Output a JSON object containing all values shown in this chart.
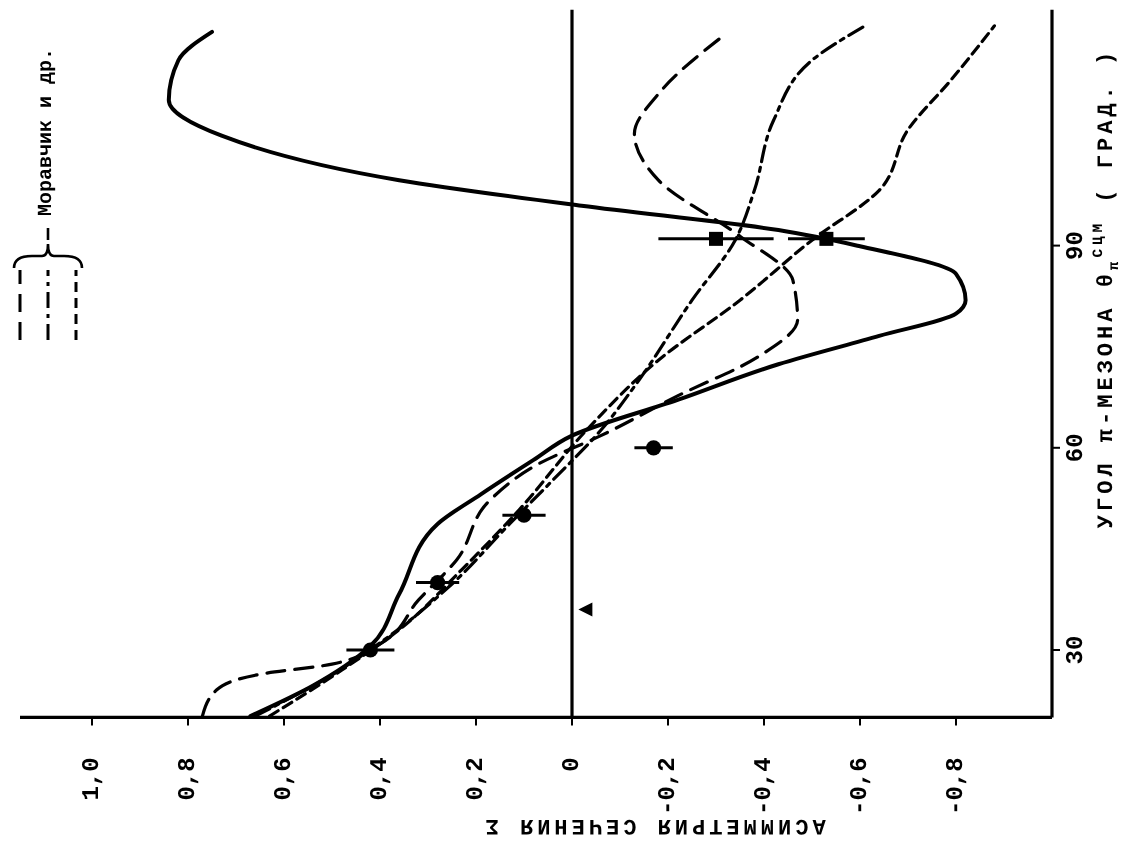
{
  "chart_data": {
    "type": "line",
    "ylabel": "УГОЛ π-МЕЗОНА θ$_{π}$$^{СЦМ}$ ( ГРАД. )",
    "xlabel": "АСИММЕТРИЯ СЕЧЕНИЯ Σ",
    "annotations": [
      "Моравчик и др."
    ],
    "ylim": [
      20,
      125
    ],
    "yticks": [
      30,
      60,
      90
    ],
    "xlim": [
      1.15,
      -1.0
    ],
    "xticks": [
      {
        "value": 1.0,
        "label": "1,0"
      },
      {
        "value": 0.8,
        "label": "0,8"
      },
      {
        "value": 0.6,
        "label": "0,6"
      },
      {
        "value": 0.4,
        "label": "0,4"
      },
      {
        "value": 0.2,
        "label": "0,2"
      },
      0,
      {
        "value": -0.2,
        "label": "-0,2"
      },
      {
        "value": -0.4,
        "label": "-0,4"
      },
      {
        "value": -0.6,
        "label": "-0,6"
      },
      {
        "value": -0.8,
        "label": "-0,8"
      }
    ],
    "ref_lines": [
      {
        "axis": "x",
        "value": 0,
        "color": "#000000"
      }
    ],
    "series": [
      {
        "color": "#000000",
        "line_style": "solid",
        "values": [
          20.2,
          24.7,
          30.6,
          38.3,
          48.7,
          53.1,
          58.2,
          61.8,
          67.1,
          72.4,
          76.6,
          79.9,
          81.9,
          85.8,
          89.9,
          92.3,
          95.9,
          99.7,
          106.3,
          111.6,
          117.5,
          121.7
        ],
        "x": [
          0.67,
          0.54,
          0.42,
          0.36,
          0.28,
          0.19,
          0.08,
          0.0,
          -0.22,
          -0.43,
          -0.64,
          -0.8,
          -0.82,
          -0.8,
          -0.6,
          -0.43,
          -0.02,
          0.36,
          0.73,
          0.84,
          0.82,
          0.75
        ]
      },
      {
        "color": "#000000",
        "line_style": "dashed",
        "values": [
          20.2,
          24.1,
          26.4,
          27.9,
          30.9,
          37.4,
          43.4,
          52.3,
          57.6,
          61.8,
          67.7,
          73.6,
          79.0,
          84.9,
          91.4,
          99.7,
          106.6,
          112.5,
          121.4
        ],
        "x": [
          0.77,
          0.74,
          0.65,
          0.5,
          0.4,
          0.32,
          0.24,
          0.17,
          0.07,
          -0.06,
          -0.22,
          -0.39,
          -0.47,
          -0.46,
          -0.35,
          -0.18,
          -0.13,
          -0.18,
          -0.32
        ]
      },
      {
        "color": "#000000",
        "line_style": "dashdot",
        "values": [
          20.2,
          25.5,
          32.1,
          39.8,
          48.7,
          55.2,
          62.6,
          70.1,
          81.9,
          90.8,
          98.2,
          108.6,
          117.5,
          122.6
        ],
        "x": [
          0.66,
          0.52,
          0.38,
          0.25,
          0.13,
          0.04,
          -0.06,
          -0.14,
          -0.25,
          -0.34,
          -0.38,
          -0.42,
          -0.5,
          -0.61
        ]
      },
      {
        "color": "#000000",
        "line_style": "dotted",
        "values": [
          20.2,
          27.0,
          33.0,
          41.9,
          50.8,
          62.6,
          73.0,
          81.9,
          90.8,
          98.2,
          107.2,
          114.6,
          122.6
        ],
        "x": [
          0.63,
          0.48,
          0.36,
          0.23,
          0.11,
          -0.03,
          -0.18,
          -0.35,
          -0.5,
          -0.64,
          -0.7,
          -0.79,
          -0.88
        ]
      },
      {
        "type": "scatter",
        "color": "#000000",
        "marker": "circle",
        "values": [
          30,
          40,
          50,
          60
        ],
        "x": [
          0.42,
          0.28,
          0.1,
          -0.17
        ],
        "xerrors": [
          0.05,
          0.045,
          0.045,
          0.04
        ]
      },
      {
        "type": "scatter",
        "color": "#000000",
        "marker": "square",
        "values": [
          91,
          91
        ],
        "x": [
          -0.3,
          -0.53
        ],
        "xerrors": [
          0.12,
          0.08
        ]
      },
      {
        "type": "scatter",
        "color": "#000000",
        "marker": "triangle",
        "values": [
          36
        ],
        "x": [
          -0.03
        ]
      }
    ]
  }
}
